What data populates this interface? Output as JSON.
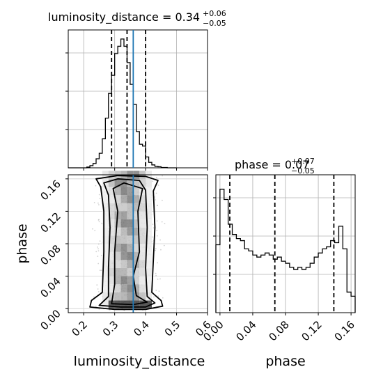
{
  "chart_data": {
    "type": "corner",
    "parameters": [
      "luminosity_distance",
      "phase"
    ],
    "truth": {
      "luminosity_distance": 0.36,
      "phase": null
    },
    "truth_color": "#1f77b4",
    "grid": true,
    "panels": [
      {
        "id": "hist-luminosity_distance",
        "type": "histogram",
        "title": {
          "main": "luminosity_distance = 0.34",
          "sup": "+0.06",
          "sub": "−0.05"
        },
        "xlim": [
          0.15,
          0.6
        ],
        "xticks": [
          0.2,
          0.3,
          0.4,
          0.5,
          0.6
        ],
        "bin_edges": [
          0.15,
          0.16,
          0.17,
          0.18,
          0.19,
          0.2,
          0.21,
          0.22,
          0.23,
          0.24,
          0.25,
          0.26,
          0.27,
          0.28,
          0.29,
          0.3,
          0.31,
          0.32,
          0.33,
          0.34,
          0.35,
          0.36,
          0.37,
          0.38,
          0.39,
          0.4,
          0.41,
          0.42,
          0.43,
          0.44,
          0.45,
          0.46,
          0.47,
          0.48,
          0.49,
          0.5
        ],
        "counts": [
          0,
          0,
          0,
          0,
          0,
          0,
          0.2,
          0.6,
          1.2,
          2.5,
          4,
          8,
          13.7,
          20.5,
          25.5,
          31.5,
          33.5,
          35.5,
          33.5,
          29,
          23,
          17.5,
          10,
          6.5,
          6,
          3,
          1.5,
          0.8,
          0.4,
          0.3,
          0.1,
          0.1,
          0,
          0,
          0
        ],
        "ymax": 38,
        "quantiles": [
          0.29,
          0.34,
          0.4
        ]
      },
      {
        "id": "hist-phase",
        "type": "histogram",
        "title": {
          "main": "phase = 0.07",
          "sup": "+0.07",
          "sub": "−0.05"
        },
        "xlim": [
          -0.005,
          0.165
        ],
        "xticks": [
          0.0,
          0.04,
          0.08,
          0.12,
          0.16
        ],
        "bin_edges": [
          -0.005,
          0.0,
          0.005,
          0.01,
          0.015,
          0.02,
          0.025,
          0.03,
          0.035,
          0.04,
          0.045,
          0.05,
          0.055,
          0.06,
          0.065,
          0.07,
          0.075,
          0.08,
          0.085,
          0.09,
          0.095,
          0.1,
          0.105,
          0.11,
          0.115,
          0.12,
          0.125,
          0.13,
          0.135,
          0.14,
          0.145,
          0.15,
          0.155,
          0.16,
          0.165
        ],
        "counts": [
          33,
          60,
          55,
          43,
          38,
          36,
          35,
          31,
          30,
          28,
          27,
          28,
          29,
          28,
          26,
          27,
          25,
          24,
          22,
          21,
          22,
          21,
          22,
          24,
          27,
          29,
          31,
          32,
          35,
          34,
          42,
          31,
          10,
          8
        ],
        "ymax": 67,
        "quantiles": [
          0.012,
          0.067,
          0.139
        ]
      },
      {
        "id": "joint",
        "type": "2d-density",
        "xlim": [
          0.15,
          0.6
        ],
        "ylim": [
          -0.005,
          0.165
        ],
        "xticks": [
          0.2,
          0.3,
          0.4,
          0.5,
          0.6
        ],
        "yticks": [
          0.0,
          0.04,
          0.08,
          0.12,
          0.16
        ],
        "xlabel": "luminosity_distance",
        "ylabel": "phase"
      }
    ],
    "xlabels": [
      "luminosity_distance",
      "phase"
    ],
    "ylabels": [
      "",
      "phase"
    ],
    "tick_labels": {
      "ld": [
        "0.2",
        "0.3",
        "0.4",
        "0.5",
        "0.6"
      ],
      "phase": [
        "0.00",
        "0.04",
        "0.08",
        "0.12",
        "0.16"
      ]
    }
  }
}
